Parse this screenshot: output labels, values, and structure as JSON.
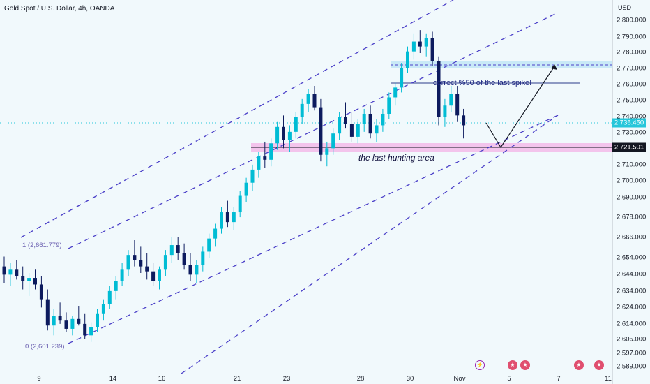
{
  "header": {
    "title": "Gold Spot / U.S. Dollar, 4h, OANDA"
  },
  "axis": {
    "currency": "USD"
  },
  "y_ticks": [
    "2,800.000",
    "2,790.000",
    "2,780.000",
    "2,770.000",
    "2,760.000",
    "2,750.000",
    "2,740.000",
    "2,730.000",
    "2,710.000",
    "2,700.000",
    "2,690.000",
    "2,678.000",
    "2,666.000",
    "2,654.000",
    "2,644.000",
    "2,634.000",
    "2,624.000",
    "2,614.000",
    "2,605.000",
    "2,597.000",
    "2,589.000"
  ],
  "x_ticks": [
    "9",
    "14",
    "16",
    "21",
    "23",
    "28",
    "30",
    "Nov",
    "5",
    "7",
    "11"
  ],
  "price_flags": {
    "current": {
      "label": "2,736.450",
      "color": "#26c6da"
    },
    "support": {
      "label": "2,721.501",
      "color": "#131722"
    }
  },
  "annotations": {
    "hunting": "the last hunting area",
    "correct": "correct %50 of the last spike!"
  },
  "fib": {
    "level_1": "1 (2,661.779)",
    "level_0": "0 (2,601.239)"
  },
  "colors": {
    "bull": "#00bcd4",
    "bear": "#0d1b5e",
    "channel": "#4a3fc8",
    "zone": "#c9e9f7"
  },
  "events": [
    "bolt-icon",
    "us-flag-icon",
    "us-flag-icon",
    "us-flag-icon",
    "us-flag-icon"
  ],
  "chart_data": {
    "type": "candlestick",
    "title": "Gold Spot / U.S. Dollar, 4h, OANDA",
    "ylim": [
      2589,
      2806
    ],
    "series": [
      {
        "values": [
          [
            2650,
            2656,
            2640,
            2645
          ],
          [
            2645,
            2652,
            2638,
            2648
          ],
          [
            2648,
            2654,
            2642,
            2644
          ],
          [
            2644,
            2650,
            2636,
            2641
          ],
          [
            2641,
            2646,
            2632,
            2643
          ],
          [
            2643,
            2648,
            2636,
            2639
          ],
          [
            2639,
            2644,
            2625,
            2630
          ],
          [
            2630,
            2636,
            2611,
            2614
          ],
          [
            2614,
            2624,
            2608,
            2620
          ],
          [
            2620,
            2628,
            2615,
            2617
          ],
          [
            2617,
            2622,
            2610,
            2612
          ],
          [
            2612,
            2620,
            2608,
            2618
          ],
          [
            2618,
            2626,
            2614,
            2615
          ],
          [
            2615,
            2621,
            2606,
            2608
          ],
          [
            2608,
            2616,
            2604,
            2613
          ],
          [
            2613,
            2624,
            2610,
            2621
          ],
          [
            2621,
            2630,
            2617,
            2627
          ],
          [
            2627,
            2638,
            2624,
            2635
          ],
          [
            2635,
            2644,
            2630,
            2641
          ],
          [
            2641,
            2652,
            2638,
            2648
          ],
          [
            2648,
            2660,
            2644,
            2657
          ],
          [
            2657,
            2666,
            2650,
            2654
          ],
          [
            2654,
            2662,
            2646,
            2650
          ],
          [
            2650,
            2658,
            2642,
            2647
          ],
          [
            2647,
            2652,
            2638,
            2641
          ],
          [
            2641,
            2650,
            2636,
            2648
          ],
          [
            2648,
            2660,
            2644,
            2657
          ],
          [
            2657,
            2668,
            2652,
            2663
          ],
          [
            2663,
            2668,
            2654,
            2658
          ],
          [
            2658,
            2664,
            2648,
            2651
          ],
          [
            2651,
            2658,
            2641,
            2645
          ],
          [
            2645,
            2654,
            2640,
            2651
          ],
          [
            2651,
            2662,
            2647,
            2659
          ],
          [
            2659,
            2670,
            2655,
            2667
          ],
          [
            2667,
            2676,
            2662,
            2673
          ],
          [
            2673,
            2686,
            2670,
            2683
          ],
          [
            2683,
            2690,
            2674,
            2677
          ],
          [
            2677,
            2686,
            2672,
            2683
          ],
          [
            2683,
            2696,
            2680,
            2693
          ],
          [
            2693,
            2704,
            2689,
            2701
          ],
          [
            2701,
            2712,
            2696,
            2709
          ],
          [
            2709,
            2720,
            2704,
            2717
          ],
          [
            2717,
            2726,
            2710,
            2715
          ],
          [
            2715,
            2728,
            2711,
            2725
          ],
          [
            2725,
            2738,
            2721,
            2735
          ],
          [
            2735,
            2742,
            2722,
            2727
          ],
          [
            2727,
            2736,
            2720,
            2732
          ],
          [
            2732,
            2744,
            2728,
            2741
          ],
          [
            2741,
            2752,
            2737,
            2749
          ],
          [
            2749,
            2758,
            2744,
            2755
          ],
          [
            2755,
            2760,
            2745,
            2747
          ],
          [
            2747,
            2752,
            2714,
            2718
          ],
          [
            2718,
            2726,
            2711,
            2722
          ],
          [
            2722,
            2734,
            2718,
            2731
          ],
          [
            2731,
            2744,
            2727,
            2741
          ],
          [
            2741,
            2750,
            2734,
            2737
          ],
          [
            2737,
            2744,
            2726,
            2729
          ],
          [
            2729,
            2740,
            2725,
            2737
          ],
          [
            2737,
            2746,
            2732,
            2743
          ],
          [
            2743,
            2748,
            2728,
            2731
          ],
          [
            2731,
            2740,
            2726,
            2736
          ],
          [
            2736,
            2746,
            2732,
            2743
          ],
          [
            2743,
            2756,
            2740,
            2753
          ],
          [
            2753,
            2762,
            2748,
            2759
          ],
          [
            2759,
            2774,
            2756,
            2771
          ],
          [
            2771,
            2784,
            2768,
            2781
          ],
          [
            2781,
            2792,
            2776,
            2787
          ],
          [
            2787,
            2794,
            2780,
            2784
          ],
          [
            2784,
            2792,
            2778,
            2789
          ],
          [
            2789,
            2793,
            2772,
            2775
          ],
          [
            2775,
            2778,
            2736,
            2741
          ],
          [
            2741,
            2752,
            2735,
            2748
          ],
          [
            2748,
            2760,
            2744,
            2755
          ],
          [
            2755,
            2760,
            2738,
            2742
          ],
          [
            2742,
            2746,
            2728,
            2736
          ]
        ]
      }
    ],
    "levels": [
      2772,
      2722,
      2762
    ],
    "fib": [
      2661.779,
      2601.239
    ]
  }
}
